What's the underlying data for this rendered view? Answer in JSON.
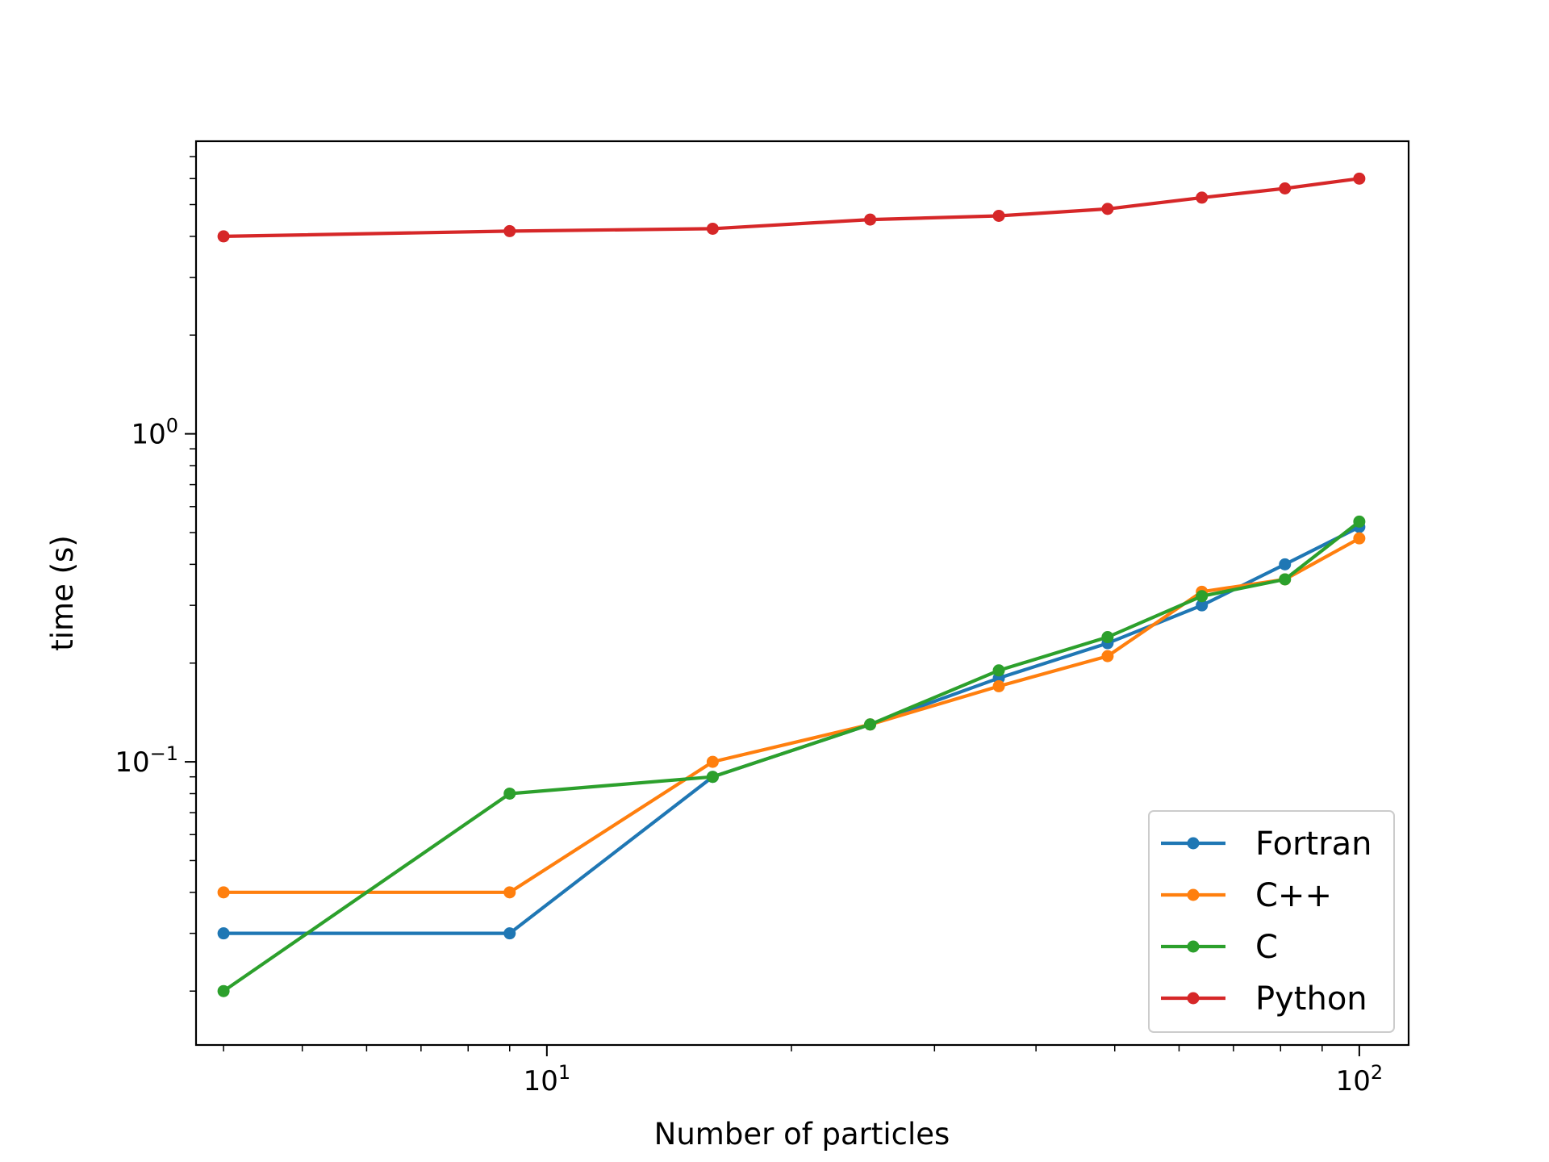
{
  "chart_data": {
    "type": "line",
    "title": "",
    "xlabel": "Number of particles",
    "ylabel": "time (s)",
    "xscale": "log",
    "yscale": "log",
    "xlim": [
      3.7,
      115
    ],
    "ylim": [
      0.0137,
      7.8
    ],
    "x": [
      4,
      9,
      16,
      25,
      36,
      49,
      64,
      81,
      100
    ],
    "x_ticks": [
      {
        "value": 10,
        "base": "10",
        "exp": "1"
      },
      {
        "value": 100,
        "base": "10",
        "exp": "2"
      }
    ],
    "y_ticks": [
      {
        "value": 0.1,
        "base": "10",
        "exp": "−1"
      },
      {
        "value": 1,
        "base": "10",
        "exp": "0"
      }
    ],
    "grid": false,
    "legend_position": "bottom-right",
    "series": [
      {
        "name": "Fortran",
        "color": "#1f77b4",
        "values": [
          0.03,
          0.03,
          0.09,
          0.13,
          0.18,
          0.23,
          0.3,
          0.4,
          0.52
        ]
      },
      {
        "name": "C++",
        "color": "#ff7f0e",
        "values": [
          0.04,
          0.04,
          0.1,
          0.13,
          0.17,
          0.21,
          0.33,
          0.36,
          0.48
        ]
      },
      {
        "name": "C",
        "color": "#2ca02c",
        "values": [
          0.02,
          0.08,
          0.09,
          0.13,
          0.19,
          0.24,
          0.32,
          0.36,
          0.54
        ]
      },
      {
        "name": "Python",
        "color": "#d62728",
        "values": [
          4.0,
          4.15,
          4.22,
          4.5,
          4.62,
          4.85,
          5.25,
          5.6,
          6.0
        ]
      }
    ]
  }
}
